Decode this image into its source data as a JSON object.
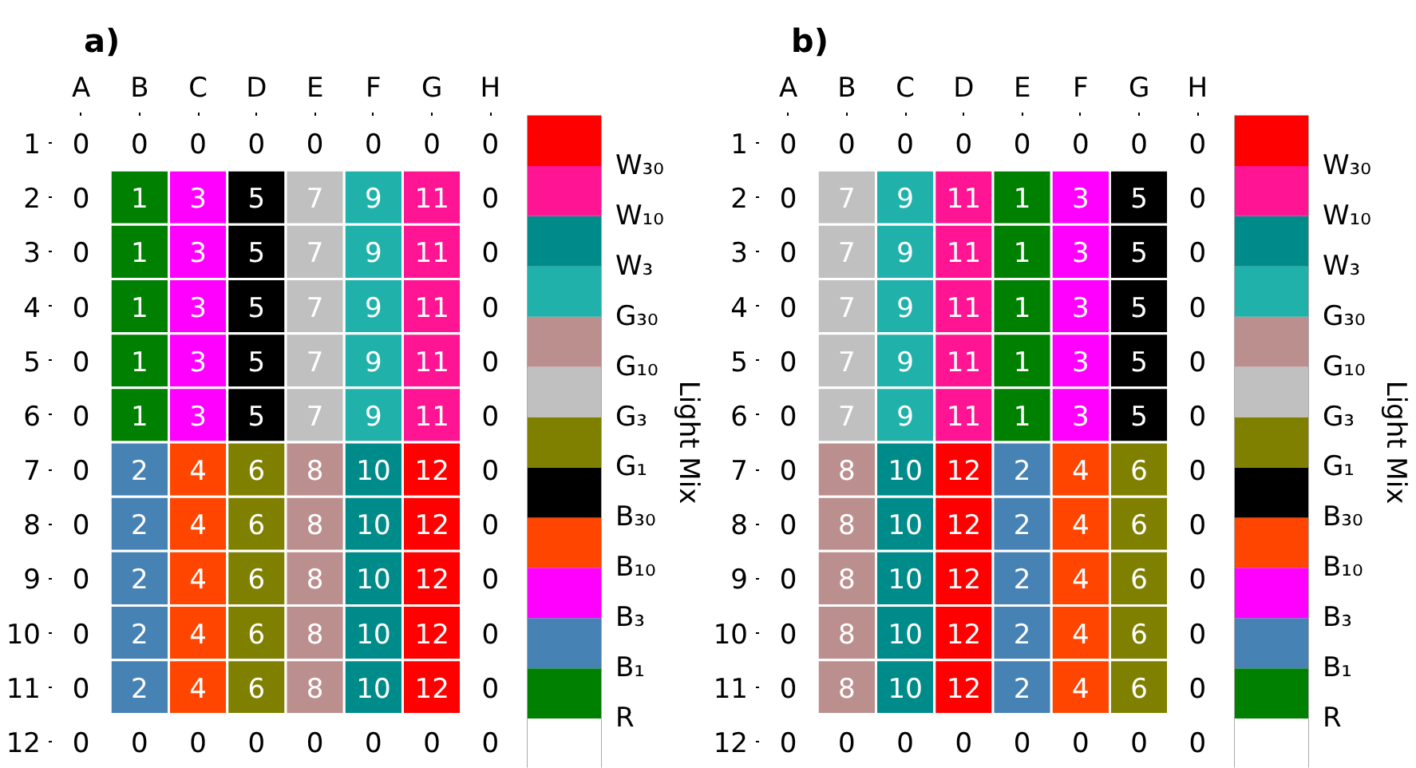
{
  "chart_data": [
    {
      "type": "heatmap",
      "data_labels": true,
      "title": "a)",
      "categories": [
        "A",
        "B",
        "C",
        "D",
        "E",
        "F",
        "G",
        "H"
      ],
      "y_categories": [
        "1",
        "2",
        "3",
        "4",
        "5",
        "6",
        "7",
        "8",
        "9",
        "10",
        "11",
        "12"
      ],
      "cells": [
        [
          0,
          0,
          0,
          0,
          0,
          0,
          0,
          0
        ],
        [
          0,
          1,
          3,
          5,
          7,
          9,
          11,
          0
        ],
        [
          0,
          1,
          3,
          5,
          7,
          9,
          11,
          0
        ],
        [
          0,
          1,
          3,
          5,
          7,
          9,
          11,
          0
        ],
        [
          0,
          1,
          3,
          5,
          7,
          9,
          11,
          0
        ],
        [
          0,
          1,
          3,
          5,
          7,
          9,
          11,
          0
        ],
        [
          0,
          2,
          4,
          6,
          8,
          10,
          12,
          0
        ],
        [
          0,
          2,
          4,
          6,
          8,
          10,
          12,
          0
        ],
        [
          0,
          2,
          4,
          6,
          8,
          10,
          12,
          0
        ],
        [
          0,
          2,
          4,
          6,
          8,
          10,
          12,
          0
        ],
        [
          0,
          2,
          4,
          6,
          8,
          10,
          12,
          0
        ],
        [
          0,
          0,
          0,
          0,
          0,
          0,
          0,
          0
        ]
      ],
      "colors": [
        "#ffffff",
        "#008000",
        "#4682b4",
        "#ff00ff",
        "#ff4500",
        "#000000",
        "#808000",
        "#c0c0c0",
        "#bc8f8f",
        "#20b2aa",
        "#008b8b",
        "#ff1493",
        "#ff0000"
      ],
      "clabel": "Light Mix",
      "clim": [
        0,
        13
      ],
      "cticks": [
        {
          "value": 1,
          "label": "R"
        },
        {
          "value": 2,
          "label": "B₁"
        },
        {
          "value": 3,
          "label": "B₃"
        },
        {
          "value": 4,
          "label": "B₁₀"
        },
        {
          "value": 5,
          "label": "B₃₀"
        },
        {
          "value": 6,
          "label": "G₁"
        },
        {
          "value": 7,
          "label": "G₃"
        },
        {
          "value": 8,
          "label": "G₁₀"
        },
        {
          "value": 9,
          "label": "G₃₀"
        },
        {
          "value": 10,
          "label": "W₃"
        },
        {
          "value": 11,
          "label": "W₁₀"
        },
        {
          "value": 12,
          "label": "W₃₀"
        }
      ]
    },
    {
      "type": "heatmap",
      "data_labels": true,
      "title": "b)",
      "categories": [
        "A",
        "B",
        "C",
        "D",
        "E",
        "F",
        "G",
        "H"
      ],
      "y_categories": [
        "1",
        "2",
        "3",
        "4",
        "5",
        "6",
        "7",
        "8",
        "9",
        "10",
        "11",
        "12"
      ],
      "cells": [
        [
          0,
          0,
          0,
          0,
          0,
          0,
          0,
          0
        ],
        [
          0,
          7,
          9,
          11,
          1,
          3,
          5,
          0
        ],
        [
          0,
          7,
          9,
          11,
          1,
          3,
          5,
          0
        ],
        [
          0,
          7,
          9,
          11,
          1,
          3,
          5,
          0
        ],
        [
          0,
          7,
          9,
          11,
          1,
          3,
          5,
          0
        ],
        [
          0,
          7,
          9,
          11,
          1,
          3,
          5,
          0
        ],
        [
          0,
          8,
          10,
          12,
          2,
          4,
          6,
          0
        ],
        [
          0,
          8,
          10,
          12,
          2,
          4,
          6,
          0
        ],
        [
          0,
          8,
          10,
          12,
          2,
          4,
          6,
          0
        ],
        [
          0,
          8,
          10,
          12,
          2,
          4,
          6,
          0
        ],
        [
          0,
          8,
          10,
          12,
          2,
          4,
          6,
          0
        ],
        [
          0,
          0,
          0,
          0,
          0,
          0,
          0,
          0
        ]
      ],
      "colors": [
        "#ffffff",
        "#008000",
        "#4682b4",
        "#ff00ff",
        "#ff4500",
        "#000000",
        "#808000",
        "#c0c0c0",
        "#bc8f8f",
        "#20b2aa",
        "#008b8b",
        "#ff1493",
        "#ff0000"
      ],
      "clabel": "Light Mix",
      "clim": [
        0,
        13
      ],
      "cticks": [
        {
          "value": 1,
          "label": "R"
        },
        {
          "value": 2,
          "label": "B₁"
        },
        {
          "value": 3,
          "label": "B₃"
        },
        {
          "value": 4,
          "label": "B₁₀"
        },
        {
          "value": 5,
          "label": "B₃₀"
        },
        {
          "value": 6,
          "label": "G₁"
        },
        {
          "value": 7,
          "label": "G₃"
        },
        {
          "value": 8,
          "label": "G₁₀"
        },
        {
          "value": 9,
          "label": "G₃₀"
        },
        {
          "value": 10,
          "label": "W₃"
        },
        {
          "value": 11,
          "label": "W₁₀"
        },
        {
          "value": 12,
          "label": "W₃₀"
        }
      ]
    }
  ]
}
